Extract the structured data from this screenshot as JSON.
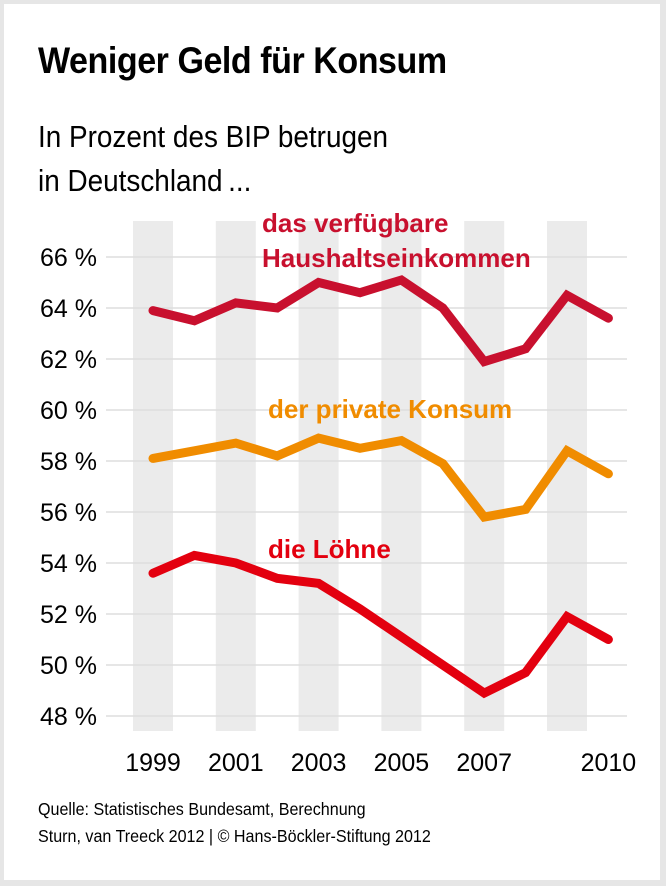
{
  "header": {
    "title": "Weniger Geld für Konsum",
    "subtitle_line1": "In Prozent des BIP betrugen",
    "subtitle_line2": "in Deutschland ..."
  },
  "footer": {
    "line1": "Quelle: Statistisches Bundesamt, Berechnung",
    "line2": "Sturn, van Treeck 2012 | © Hans-Böckler-Stiftung 2012"
  },
  "chart_data": {
    "type": "line",
    "title": "Weniger Geld für Konsum",
    "subtitle": "In Prozent des BIP betrugen in Deutschland ...",
    "xlabel": "",
    "ylabel": "",
    "x": [
      1999,
      2000,
      2001,
      2002,
      2003,
      2004,
      2005,
      2006,
      2007,
      2008,
      2009,
      2010
    ],
    "x_tick_labels": [
      "1999",
      "2001",
      "2003",
      "2005",
      "2007",
      "2010"
    ],
    "x_tick_values": [
      1999,
      2001,
      2003,
      2005,
      2007,
      2010
    ],
    "y_tick_labels": [
      "66 %",
      "64 %",
      "62 %",
      "60 %",
      "58 %",
      "56 %",
      "54 %",
      "52 %",
      "50 %",
      "48 %"
    ],
    "y_tick_values": [
      66,
      64,
      62,
      60,
      58,
      56,
      54,
      52,
      50,
      48
    ],
    "ylim": [
      48,
      66
    ],
    "grid": true,
    "shaded_year_bands": [
      1999,
      2001,
      2003,
      2005,
      2007,
      2009
    ],
    "series": [
      {
        "name": "das verfügbare Haushaltseinkommen",
        "label_line1": "das verfügbare",
        "label_line2": "Haushaltseinkommen",
        "color": "#C8102E",
        "values": [
          63.9,
          63.5,
          64.2,
          64.0,
          65.0,
          64.6,
          65.1,
          64.0,
          61.9,
          62.4,
          64.5,
          63.6
        ]
      },
      {
        "name": "der private Konsum",
        "label_line1": "der private Konsum",
        "color": "#F08C00",
        "values": [
          58.1,
          58.4,
          58.7,
          58.2,
          58.9,
          58.5,
          58.8,
          57.9,
          55.8,
          56.1,
          58.4,
          57.5
        ]
      },
      {
        "name": "die Löhne",
        "label_line1": "die Löhne",
        "color": "#E3000F",
        "values": [
          53.6,
          54.3,
          54.0,
          53.4,
          53.2,
          52.2,
          51.1,
          50.0,
          48.9,
          49.7,
          51.9,
          51.0
        ]
      }
    ],
    "legend": "inline labels above each line"
  }
}
